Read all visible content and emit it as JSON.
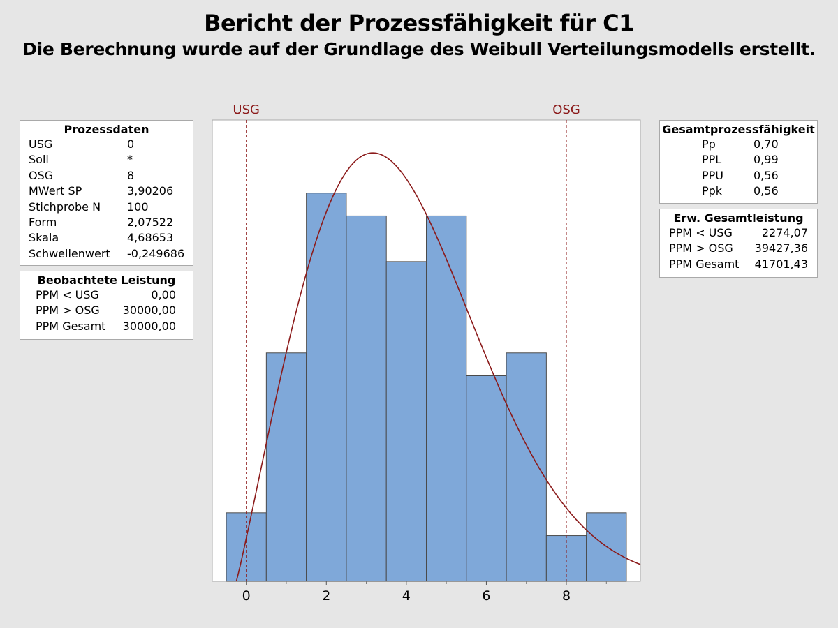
{
  "title": "Bericht der Prozessfähigkeit für C1",
  "subtitle": "Die Berechnung wurde auf der Grundlage des Weibull Verteilungsmodells erstellt.",
  "prozessdaten": {
    "header": "Prozessdaten",
    "rows": [
      {
        "label": "USG",
        "value": "0"
      },
      {
        "label": "Soll",
        "value": "*"
      },
      {
        "label": "OSG",
        "value": "8"
      },
      {
        "label": "MWert SP",
        "value": "3,90206"
      },
      {
        "label": "Stichprobe N",
        "value": "100"
      },
      {
        "label": "Form",
        "value": "2,07522"
      },
      {
        "label": "Skala",
        "value": "4,68653"
      },
      {
        "label": "Schwellenwert",
        "value": "-0,249686"
      }
    ]
  },
  "beobachtete_leistung": {
    "header": "Beobachtete Leistung",
    "rows": [
      {
        "label": "PPM < USG",
        "value": "0,00"
      },
      {
        "label": "PPM > OSG",
        "value": "30000,00"
      },
      {
        "label": "PPM Gesamt",
        "value": "30000,00"
      }
    ]
  },
  "gesamtprozessfaehigkeit": {
    "header": "Gesamtprozessfähigkeit",
    "rows": [
      {
        "label": "Pp",
        "value": "0,70"
      },
      {
        "label": "PPL",
        "value": "0,99"
      },
      {
        "label": "PPU",
        "value": "0,56"
      },
      {
        "label": "Ppk",
        "value": "0,56"
      }
    ]
  },
  "erwartete_leistung": {
    "header": "Erw. Gesamtleistung",
    "rows": [
      {
        "label": "PPM < USG",
        "value": "2274,07"
      },
      {
        "label": "PPM > OSG",
        "value": "39427,36"
      },
      {
        "label": "PPM Gesamt",
        "value": "41701,43"
      }
    ]
  },
  "chart_data": {
    "type": "bar",
    "title": "",
    "xlabel": "",
    "ylabel": "",
    "bin_width": 1,
    "bins": [
      {
        "start": -0.5,
        "end": 0.5,
        "count": 3
      },
      {
        "start": 0.5,
        "end": 1.5,
        "count": 10
      },
      {
        "start": 1.5,
        "end": 2.5,
        "count": 17
      },
      {
        "start": 2.5,
        "end": 3.5,
        "count": 16
      },
      {
        "start": 3.5,
        "end": 4.5,
        "count": 14
      },
      {
        "start": 4.5,
        "end": 5.5,
        "count": 16
      },
      {
        "start": 5.5,
        "end": 6.5,
        "count": 9
      },
      {
        "start": 6.5,
        "end": 7.5,
        "count": 10
      },
      {
        "start": 7.5,
        "end": 8.5,
        "count": 2
      },
      {
        "start": 8.5,
        "end": 9.5,
        "count": 3
      }
    ],
    "xlim": [
      -0.85,
      9.85
    ],
    "ylim": [
      0,
      20.2
    ],
    "x_ticks": [
      0,
      2,
      4,
      6,
      8
    ],
    "x_tick_labels": [
      "0",
      "2",
      "4",
      "6",
      "8"
    ],
    "x_minor_ticks": [
      1,
      3,
      5,
      7,
      9
    ],
    "y_tick_labels_shown": false,
    "fit_curve": {
      "distribution": "Weibull",
      "shape": 2.07522,
      "scale": 4.68653,
      "threshold": -0.249686,
      "n": 100,
      "color": "#8b1a1a"
    },
    "spec_limits": [
      {
        "label": "USG",
        "x": 0,
        "color": "#8b1a1a"
      },
      {
        "label": "OSG",
        "x": 8,
        "color": "#8b1a1a"
      }
    ],
    "bar_fill": "#7fa8d9",
    "bar_stroke": "#4a4a4a",
    "plot_background": "#ffffff"
  }
}
